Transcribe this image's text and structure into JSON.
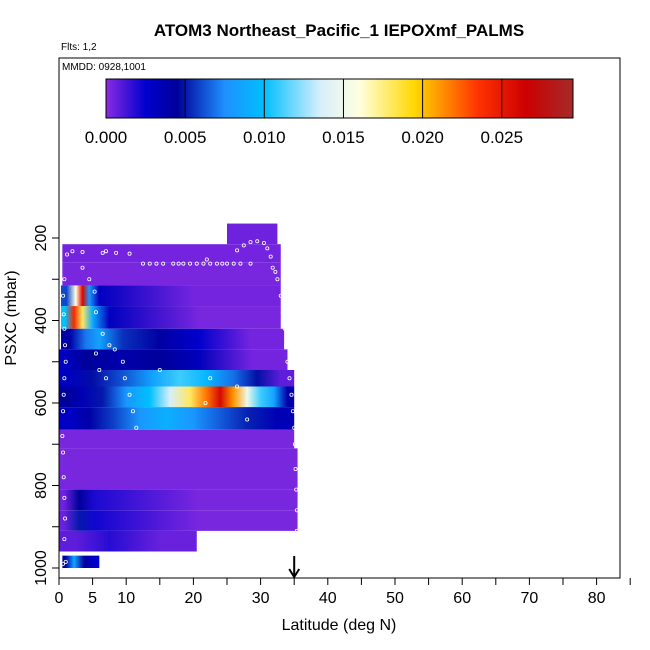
{
  "header": {
    "title": "ATOM3 Northeast_Pacific_1 IEPOXmf_PALMS",
    "flights": "Flts: 1,2",
    "dates": "MMDD: 0928,1001"
  },
  "colorbar": {
    "min": 0,
    "max": 0.0295,
    "ticks": [
      0,
      0.005,
      0.01,
      0.015,
      0.02,
      0.025
    ],
    "tick_labels": [
      "0.000",
      "0.005",
      "0.010",
      "0.015",
      "0.020",
      "0.025"
    ],
    "stops": [
      {
        "v": 0.0,
        "c": "#8a2be2"
      },
      {
        "v": 0.0025,
        "c": "#0000cd"
      },
      {
        "v": 0.0045,
        "c": "#00009a"
      },
      {
        "v": 0.0075,
        "c": "#1e90ff"
      },
      {
        "v": 0.01,
        "c": "#00bfff"
      },
      {
        "v": 0.0135,
        "c": "#d6eefc"
      },
      {
        "v": 0.016,
        "c": "#ffffe0"
      },
      {
        "v": 0.0195,
        "c": "#ffd700"
      },
      {
        "v": 0.0235,
        "c": "#ff3300"
      },
      {
        "v": 0.0265,
        "c": "#cc0000"
      },
      {
        "v": 0.0295,
        "c": "#a52a2a"
      }
    ]
  },
  "chart_data": {
    "type": "heatmap",
    "title": "ATOM3 Northeast_Pacific_1 IEPOXmf_PALMS",
    "xlabel": "Latitude (deg N)",
    "ylabel": "PSXC (mbar)",
    "xlim": [
      0,
      85
    ],
    "ylim": [
      1000,
      100
    ],
    "y_reversed": true,
    "x_ticks": [
      0,
      5,
      10,
      20,
      30,
      40,
      50,
      60,
      70,
      80
    ],
    "x_minor_ticks": [
      15,
      25,
      35,
      45,
      55,
      65,
      75,
      85
    ],
    "y_ticks": [
      200,
      400,
      600,
      800,
      1000
    ],
    "y_minor_ticks": [
      300,
      500,
      700,
      900
    ],
    "marker_latitude": 35,
    "bands": [
      {
        "p": [
          165,
          215
        ],
        "x": [
          25,
          32.5
        ],
        "segments": [
          {
            "x": [
              25,
              32.5
            ],
            "v": 0.0005
          }
        ]
      },
      {
        "p": [
          215,
          260
        ],
        "x": [
          0.5,
          33
        ],
        "segments": [
          {
            "x": [
              0.5,
              33
            ],
            "v": 0.0004
          }
        ]
      },
      {
        "p": [
          260,
          315
        ],
        "x": [
          0.5,
          33
        ],
        "segments": [
          {
            "x": [
              0.5,
              33
            ],
            "v": 0.0003
          }
        ]
      },
      {
        "p": [
          315,
          365
        ],
        "x": [
          0.3,
          33
        ],
        "segments": [
          {
            "x": [
              0.3,
              2
            ],
            "v": 0.006
          },
          {
            "x": [
              2,
              3
            ],
            "v": 0.016
          },
          {
            "x": [
              3,
              4
            ],
            "v": 0.026
          },
          {
            "x": [
              4,
              5
            ],
            "v": 0.008
          },
          {
            "x": [
              5,
              7
            ],
            "v": 0.003
          },
          {
            "x": [
              7,
              33
            ],
            "v": 0.0004
          }
        ]
      },
      {
        "p": [
          365,
          420
        ],
        "x": [
          0.3,
          33
        ],
        "segments": [
          {
            "x": [
              0.3,
              1.5
            ],
            "v": 0.01
          },
          {
            "x": [
              1.5,
              3
            ],
            "v": 0.024
          },
          {
            "x": [
              3,
              4
            ],
            "v": 0.018
          },
          {
            "x": [
              4,
              6
            ],
            "v": 0.009
          },
          {
            "x": [
              6,
              9
            ],
            "v": 0.003
          },
          {
            "x": [
              9,
              33
            ],
            "v": 0.0003
          }
        ]
      },
      {
        "p": [
          420,
          470
        ],
        "x": [
          0.3,
          33.5
        ],
        "segments": [
          {
            "x": [
              0.3,
              3
            ],
            "v": 0.004
          },
          {
            "x": [
              3,
              5
            ],
            "v": 0.007
          },
          {
            "x": [
              5,
              7
            ],
            "v": 0.0085
          },
          {
            "x": [
              7,
              12
            ],
            "v": 0.0055
          },
          {
            "x": [
              12,
              18
            ],
            "v": 0.0042
          },
          {
            "x": [
              18,
              23.5
            ],
            "v": 0.0025
          },
          {
            "x": [
              23.5,
              33.5
            ],
            "v": 0.0004
          }
        ]
      },
      {
        "p": [
          470,
          520
        ],
        "x": [
          0,
          34
        ],
        "segments": [
          {
            "x": [
              0,
              2
            ],
            "v": 0.003
          },
          {
            "x": [
              2,
              6
            ],
            "v": 0.0045
          },
          {
            "x": [
              6,
              12
            ],
            "v": 0.0038
          },
          {
            "x": [
              12,
              18
            ],
            "v": 0.0045
          },
          {
            "x": [
              18,
              23.5
            ],
            "v": 0.0032
          },
          {
            "x": [
              23.5,
              34
            ],
            "v": 0.0004
          }
        ]
      },
      {
        "p": [
          520,
          560
        ],
        "x": [
          0,
          35
        ],
        "segments": [
          {
            "x": [
              0,
              3
            ],
            "v": 0.003
          },
          {
            "x": [
              3,
              7
            ],
            "v": 0.0048
          },
          {
            "x": [
              7,
              12
            ],
            "v": 0.0062
          },
          {
            "x": [
              12,
              16
            ],
            "v": 0.0085
          },
          {
            "x": [
              16,
              20
            ],
            "v": 0.011
          },
          {
            "x": [
              20,
              24
            ],
            "v": 0.0095
          },
          {
            "x": [
              24,
              28
            ],
            "v": 0.0068
          },
          {
            "x": [
              28,
              31
            ],
            "v": 0.0048
          },
          {
            "x": [
              31,
              35
            ],
            "v": 0.0008
          }
        ]
      },
      {
        "p": [
          560,
          610
        ],
        "x": [
          0,
          35
        ],
        "segments": [
          {
            "x": [
              0,
              2
            ],
            "v": 0.0045
          },
          {
            "x": [
              2,
              5
            ],
            "v": 0.0035
          },
          {
            "x": [
              5,
              8
            ],
            "v": 0.005
          },
          {
            "x": [
              8,
              12
            ],
            "v": 0.0078
          },
          {
            "x": [
              12,
              15
            ],
            "v": 0.01
          },
          {
            "x": [
              15,
              18
            ],
            "v": 0.0135
          },
          {
            "x": [
              18,
              21
            ],
            "v": 0.018
          },
          {
            "x": [
              21,
              23
            ],
            "v": 0.022
          },
          {
            "x": [
              23,
              25
            ],
            "v": 0.026
          },
          {
            "x": [
              25,
              27
            ],
            "v": 0.021
          },
          {
            "x": [
              27,
              29
            ],
            "v": 0.015
          },
          {
            "x": [
              29,
              31
            ],
            "v": 0.011
          },
          {
            "x": [
              31,
              33
            ],
            "v": 0.0085
          },
          {
            "x": [
              33,
              35
            ],
            "v": 0.004
          }
        ]
      },
      {
        "p": [
          610,
          665
        ],
        "x": [
          0,
          35
        ],
        "segments": [
          {
            "x": [
              0,
              3
            ],
            "v": 0.0028
          },
          {
            "x": [
              3,
              6
            ],
            "v": 0.004
          },
          {
            "x": [
              6,
              10
            ],
            "v": 0.0058
          },
          {
            "x": [
              10,
              14
            ],
            "v": 0.0078
          },
          {
            "x": [
              14,
              18
            ],
            "v": 0.0092
          },
          {
            "x": [
              18,
              22
            ],
            "v": 0.0078
          },
          {
            "x": [
              22,
              26
            ],
            "v": 0.0064
          },
          {
            "x": [
              26,
              30
            ],
            "v": 0.0052
          },
          {
            "x": [
              30,
              35
            ],
            "v": 0.0035
          }
        ]
      },
      {
        "p": [
          665,
          710
        ],
        "x": [
          0,
          35
        ],
        "segments": [
          {
            "x": [
              0,
              35
            ],
            "v": 0.0003
          }
        ]
      },
      {
        "p": [
          710,
          760
        ],
        "x": [
          0,
          35.5
        ],
        "segments": [
          {
            "x": [
              0,
              35.5
            ],
            "v": 0.0003
          }
        ]
      },
      {
        "p": [
          760,
          810
        ],
        "x": [
          0,
          35.5
        ],
        "segments": [
          {
            "x": [
              0,
              35.5
            ],
            "v": 0.0003
          }
        ]
      },
      {
        "p": [
          810,
          860
        ],
        "x": [
          0,
          35.5
        ],
        "segments": [
          {
            "x": [
              0,
              1.5
            ],
            "v": 0.0005
          },
          {
            "x": [
              1.5,
              4.5
            ],
            "v": 0.0045
          },
          {
            "x": [
              4.5,
              6
            ],
            "v": 0.002
          },
          {
            "x": [
              6,
              35.5
            ],
            "v": 0.0003
          }
        ]
      },
      {
        "p": [
          860,
          910
        ],
        "x": [
          0,
          35.5
        ],
        "segments": [
          {
            "x": [
              0,
              1.5
            ],
            "v": 0.0006
          },
          {
            "x": [
              1.5,
              4.5
            ],
            "v": 0.005
          },
          {
            "x": [
              4.5,
              6
            ],
            "v": 0.0022
          },
          {
            "x": [
              6,
              35.5
            ],
            "v": 0.0003
          }
        ]
      },
      {
        "p": [
          910,
          960
        ],
        "x": [
          0,
          20.5
        ],
        "segments": [
          {
            "x": [
              0,
              5
            ],
            "v": 0.0008
          },
          {
            "x": [
              5,
              10
            ],
            "v": 0.0018
          },
          {
            "x": [
              10,
              20.5
            ],
            "v": 0.0006
          }
        ]
      },
      {
        "p": [
          970,
          1000
        ],
        "x": [
          0.5,
          6
        ],
        "segments": [
          {
            "x": [
              0.5,
              1.5
            ],
            "v": 0.004
          },
          {
            "x": [
              1.5,
              3
            ],
            "v": 0.0085
          },
          {
            "x": [
              3,
              4.5
            ],
            "v": 0.0045
          },
          {
            "x": [
              4.5,
              6
            ],
            "v": 0.0025
          }
        ]
      }
    ],
    "flight_track": [
      {
        "x": 0.6,
        "y": 990
      },
      {
        "x": 1.0,
        "y": 985
      },
      {
        "x": 0.8,
        "y": 930
      },
      {
        "x": 0.9,
        "y": 880
      },
      {
        "x": 0.8,
        "y": 830
      },
      {
        "x": 0.7,
        "y": 780
      },
      {
        "x": 0.6,
        "y": 720
      },
      {
        "x": 0.5,
        "y": 680
      },
      {
        "x": 0.6,
        "y": 620
      },
      {
        "x": 0.7,
        "y": 580
      },
      {
        "x": 0.8,
        "y": 540
      },
      {
        "x": 1.0,
        "y": 500
      },
      {
        "x": 0.9,
        "y": 460
      },
      {
        "x": 0.8,
        "y": 420
      },
      {
        "x": 0.7,
        "y": 385
      },
      {
        "x": 0.6,
        "y": 340
      },
      {
        "x": 0.8,
        "y": 300
      },
      {
        "x": 1.2,
        "y": 240
      },
      {
        "x": 2.0,
        "y": 232
      },
      {
        "x": 3.5,
        "y": 234
      },
      {
        "x": 6.5,
        "y": 236
      },
      {
        "x": 7.0,
        "y": 232
      },
      {
        "x": 8.5,
        "y": 236
      },
      {
        "x": 10.5,
        "y": 238
      },
      {
        "x": 3.5,
        "y": 272
      },
      {
        "x": 4.5,
        "y": 300
      },
      {
        "x": 5.3,
        "y": 330
      },
      {
        "x": 5.5,
        "y": 380
      },
      {
        "x": 6.5,
        "y": 432
      },
      {
        "x": 7.5,
        "y": 460
      },
      {
        "x": 8.3,
        "y": 470
      },
      {
        "x": 9.5,
        "y": 500
      },
      {
        "x": 9.8,
        "y": 540
      },
      {
        "x": 10.5,
        "y": 580
      },
      {
        "x": 11.0,
        "y": 620
      },
      {
        "x": 11.5,
        "y": 660
      },
      {
        "x": 7.0,
        "y": 540
      },
      {
        "x": 6.0,
        "y": 520
      },
      {
        "x": 5.5,
        "y": 480
      },
      {
        "x": 12.5,
        "y": 262
      },
      {
        "x": 13.5,
        "y": 262
      },
      {
        "x": 14.5,
        "y": 262
      },
      {
        "x": 15.5,
        "y": 262
      },
      {
        "x": 17.0,
        "y": 262
      },
      {
        "x": 17.8,
        "y": 262
      },
      {
        "x": 18.5,
        "y": 262
      },
      {
        "x": 19.5,
        "y": 262
      },
      {
        "x": 20.5,
        "y": 262
      },
      {
        "x": 21.5,
        "y": 262
      },
      {
        "x": 22.5,
        "y": 262
      },
      {
        "x": 23.5,
        "y": 262
      },
      {
        "x": 24.3,
        "y": 262
      },
      {
        "x": 25.0,
        "y": 262
      },
      {
        "x": 26.0,
        "y": 262
      },
      {
        "x": 27.0,
        "y": 262
      },
      {
        "x": 28.5,
        "y": 262
      },
      {
        "x": 22.0,
        "y": 252
      },
      {
        "x": 26.5,
        "y": 230
      },
      {
        "x": 27.5,
        "y": 218
      },
      {
        "x": 28.5,
        "y": 210
      },
      {
        "x": 29.5,
        "y": 208
      },
      {
        "x": 30.5,
        "y": 212
      },
      {
        "x": 31.0,
        "y": 225
      },
      {
        "x": 31.5,
        "y": 245
      },
      {
        "x": 31.8,
        "y": 272
      },
      {
        "x": 32.2,
        "y": 282
      },
      {
        "x": 32.5,
        "y": 300
      },
      {
        "x": 33.0,
        "y": 340
      },
      {
        "x": 33.3,
        "y": 380
      },
      {
        "x": 33.6,
        "y": 420
      },
      {
        "x": 33.8,
        "y": 460
      },
      {
        "x": 34.0,
        "y": 500
      },
      {
        "x": 34.3,
        "y": 540
      },
      {
        "x": 34.6,
        "y": 580
      },
      {
        "x": 34.8,
        "y": 620
      },
      {
        "x": 35.0,
        "y": 660
      },
      {
        "x": 35.1,
        "y": 700
      },
      {
        "x": 35.2,
        "y": 760
      },
      {
        "x": 35.3,
        "y": 810
      },
      {
        "x": 35.4,
        "y": 860
      },
      {
        "x": 35.4,
        "y": 910
      },
      {
        "x": 21.8,
        "y": 600
      },
      {
        "x": 26.5,
        "y": 560
      },
      {
        "x": 28.0,
        "y": 640
      },
      {
        "x": 15.0,
        "y": 520
      },
      {
        "x": 22.5,
        "y": 540
      }
    ]
  }
}
